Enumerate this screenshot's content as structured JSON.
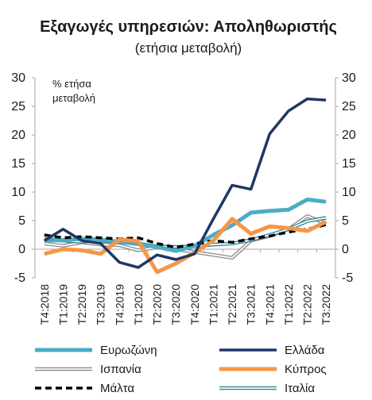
{
  "chart_data": {
    "type": "line",
    "title": "Εξαγωγές υπηρεσιών: Αποληθωριστής",
    "subtitle": "(ετήσια μεταβολή)",
    "unit_label_line1": "% ετήσα",
    "unit_label_line2": "μεταβολή",
    "ylim": [
      -5,
      30
    ],
    "yticks": [
      -5,
      0,
      5,
      10,
      15,
      20,
      25,
      30
    ],
    "yticks_right": [
      -5,
      0,
      5,
      10,
      15,
      20,
      25,
      30
    ],
    "categories": [
      "Τ4:2018",
      "Τ1:2019",
      "Τ2:2019",
      "Τ3:2019",
      "Τ4:2019",
      "Τ1:2020",
      "Τ2:2020",
      "Τ3:2020",
      "Τ4:2020",
      "Τ1:2021",
      "Τ2:2021",
      "Τ3:2021",
      "Τ4:2021",
      "Τ1:2022",
      "Τ2:2022",
      "Τ3:2022"
    ],
    "x_tick_labels": [
      "Τ4:2018",
      "Τ1:2019",
      "Τ2:2019",
      "Τ3:2019",
      "Τ4:2019",
      "Τ1:2020",
      "Τ2:2020",
      "Τ3:2020",
      "Τ4:2020",
      "Τ1:2021",
      "Τ2:2021",
      "Τ3:2021",
      "Τ4:2021",
      "Τ1:2022",
      "Τ2:2022",
      "Τ3:2022"
    ],
    "x_marks": [
      0,
      0.5,
      1,
      1.5,
      2,
      2.5,
      3,
      3.5,
      4,
      4.5,
      5,
      5.5,
      6,
      6.5,
      7,
      7.5,
      8,
      8.5,
      9,
      9.5,
      10,
      10.5,
      11,
      11.5,
      12,
      12.5,
      13,
      13.5,
      14,
      14.5,
      15
    ],
    "series": [
      {
        "name": "Ευρωζώνη",
        "color": "#4bacc6",
        "style": "thick",
        "values": [
          1.5,
          1.6,
          1.8,
          1.7,
          1.3,
          0.9,
          0.4,
          -0.3,
          0.6,
          2.5,
          4.2,
          6.4,
          6.7,
          6.9,
          8.7,
          8.3
        ]
      },
      {
        "name": "Ελλάδα",
        "color": "#1f3864",
        "style": "solid",
        "values": [
          1.5,
          3.5,
          1.5,
          1.0,
          -2.3,
          -3.2,
          -1.0,
          -1.8,
          -0.8,
          5.3,
          11.2,
          10.5,
          20.2,
          24.2,
          26.3,
          26.1
        ]
      },
      {
        "name": "Ισπανία",
        "color": "#8c8c8c",
        "style": "double",
        "values": [
          1.0,
          0.6,
          1.2,
          0.8,
          0.7,
          -0.2,
          0.3,
          0.0,
          -0.5,
          -1.0,
          -1.5,
          1.5,
          2.3,
          3.5,
          5.8,
          4.5
        ]
      },
      {
        "name": "Κύπρος",
        "color": "#f79646",
        "style": "thick",
        "values": [
          -0.8,
          0.0,
          -0.2,
          -0.8,
          1.7,
          1.4,
          -4.0,
          -2.5,
          -0.6,
          1.5,
          5.3,
          2.7,
          4.0,
          3.7,
          3.2,
          4.8
        ]
      },
      {
        "name": "Μάλτα",
        "color": "#000000",
        "style": "dashed",
        "values": [
          2.5,
          2.0,
          2.2,
          2.0,
          1.8,
          2.0,
          1.0,
          0.3,
          0.9,
          1.5,
          1.2,
          1.8,
          2.3,
          3.0,
          3.5,
          4.3
        ]
      },
      {
        "name": "Ιταλία",
        "color": "#31849b",
        "style": "double",
        "values": [
          1.8,
          1.5,
          1.3,
          1.5,
          1.2,
          1.0,
          0.5,
          0.4,
          0.5,
          0.8,
          1.0,
          1.6,
          2.5,
          3.5,
          4.9,
          5.5
        ]
      }
    ]
  }
}
